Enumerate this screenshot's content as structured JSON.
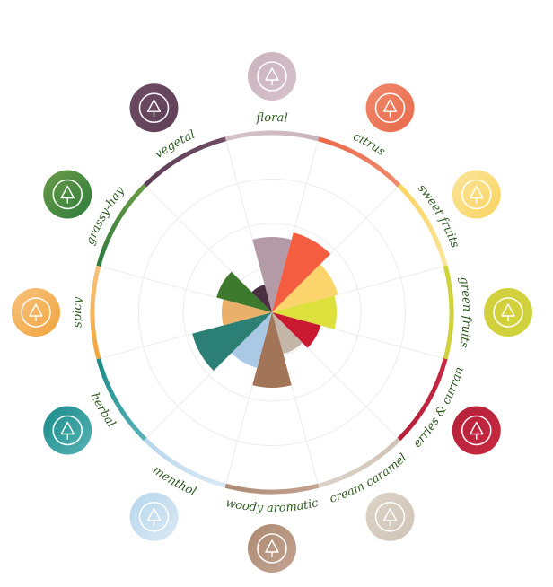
{
  "chart_data": {
    "type": "polar-area",
    "title": "",
    "rlim": [
      0,
      5
    ],
    "grid": true,
    "categories": [
      {
        "label": "floral",
        "value": 2.1,
        "color": "#b39aa6",
        "ring": [
          "#d7c2cb",
          "#c9b3bd"
        ],
        "icon": "flower-icon"
      },
      {
        "label": "citrus",
        "value": 2.3,
        "color": "#f55d40",
        "ring": [
          "#e9694a",
          "#f08a6d"
        ],
        "icon": "lemon-slice-icon"
      },
      {
        "label": "sweet fruits",
        "value": 1.9,
        "color": "#fbd56b",
        "ring": [
          "#fbd35f",
          "#f9e59b"
        ],
        "icon": "pineapple-icon"
      },
      {
        "label": "green fruits",
        "value": 1.8,
        "color": "#dde03d",
        "ring": [
          "#cfd33a",
          "#d4cf3f"
        ],
        "icon": "apple-icon"
      },
      {
        "label": "berries & currant",
        "value": 1.4,
        "color": "#c91a32",
        "ring": [
          "#c82a43",
          "#b52039"
        ],
        "icon": "berries-icon"
      },
      {
        "label": "cream caramel",
        "value": 1.2,
        "color": "#c4b7a9",
        "ring": [
          "#cfc4b7",
          "#ddd3c7"
        ],
        "icon": "cream-icon"
      },
      {
        "label": "woody aromatic",
        "value": 2.1,
        "color": "#a27458",
        "ring": [
          "#c3a491",
          "#ad8a73"
        ],
        "icon": "tree-icon"
      },
      {
        "label": "menthol",
        "value": 1.6,
        "color": "#aac9e4",
        "ring": [
          "#dbe9f4",
          "#b6d6ec"
        ],
        "icon": "mint-leaf-icon"
      },
      {
        "label": "herbal",
        "value": 2.3,
        "color": "#2b7f74",
        "ring": [
          "#58b3b5",
          "#1a8b8a"
        ],
        "icon": "leaf-icon"
      },
      {
        "label": "spicy",
        "value": 1.4,
        "color": "#e8b06a",
        "ring": [
          "#f1a53c",
          "#f7c27e"
        ],
        "icon": "chili-icon"
      },
      {
        "label": "grassy-hay",
        "value": 1.6,
        "color": "#3e7a2d",
        "ring": [
          "#2e7d3d",
          "#6b9a47"
        ],
        "icon": "grass-icon"
      },
      {
        "label": "vegetal",
        "value": 0.8,
        "color": "#4a2f40",
        "ring": [
          "#5e3f57",
          "#6e4d63"
        ],
        "icon": "onion-icon"
      }
    ]
  }
}
